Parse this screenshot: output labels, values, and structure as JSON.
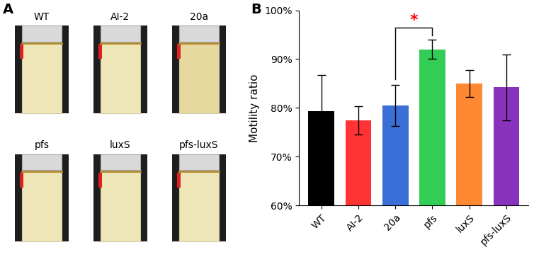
{
  "panel_labels": [
    "A",
    "B"
  ],
  "tubes": {
    "labels": [
      "WT",
      "AI-2",
      "20a",
      "pfs",
      "luxS",
      "pfs-luxS"
    ]
  },
  "chart_data": {
    "type": "bar",
    "y_label": "Motility ratio",
    "categories": [
      "WT",
      "AI-2",
      "20a",
      "pfs",
      "luxS",
      "pfs-luxS"
    ],
    "values": [
      79.3,
      77.5,
      80.5,
      92.0,
      85.0,
      84.2
    ],
    "errors": [
      7.5,
      2.9,
      4.2,
      2.0,
      2.7,
      6.8
    ],
    "colors": [
      "#000000",
      "#ff3333",
      "#3a6fd8",
      "#33cc55",
      "#ff8833",
      "#8833bb"
    ],
    "ylim": [
      60,
      100
    ],
    "yticks": [
      {
        "value": 60,
        "label": "60%"
      },
      {
        "value": 70,
        "label": "70%"
      },
      {
        "value": 80,
        "label": "80%"
      },
      {
        "value": 90,
        "label": "90%"
      },
      {
        "value": 100,
        "label": "100%"
      }
    ],
    "grid": false,
    "annotations": [
      {
        "text": "*",
        "from": "20a",
        "to": "pfs",
        "color": "#ff0000"
      }
    ]
  }
}
